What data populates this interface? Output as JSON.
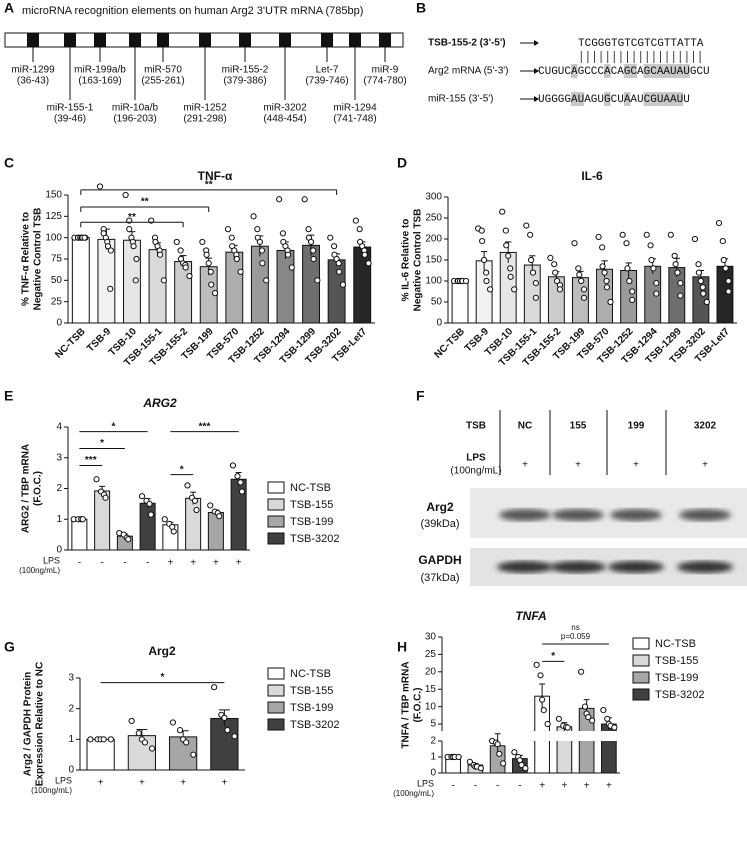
{
  "panel_a": {
    "label": "A",
    "title": "microRNA recognition elements on human Arg2 3'UTR mRNA (785bp)",
    "sites": [
      {
        "name": "miR-1299",
        "range": "(36-43)"
      },
      {
        "name": "miR-155-1",
        "range": "(39-46)"
      },
      {
        "name": "miR-199a/b",
        "range": "(163-169)"
      },
      {
        "name": "miR-10a/b",
        "range": "(196-203)"
      },
      {
        "name": "miR-570",
        "range": "(255-261)"
      },
      {
        "name": "miR-1252",
        "range": "(291-298)"
      },
      {
        "name": "miR-155-2",
        "range": "(379-386)"
      },
      {
        "name": "miR-3202",
        "range": "(448-454)"
      },
      {
        "name": "Let-7",
        "range": "(739-746)"
      },
      {
        "name": "miR-1294",
        "range": "(741-748)"
      },
      {
        "name": "miR-9",
        "range": "(774-780)"
      }
    ]
  },
  "panel_b": {
    "label": "B",
    "rows": [
      {
        "name": "TSB-155-2 (3'-5')",
        "sequence": "TCGGGTGTCGTCGTTATTA"
      },
      {
        "name": "Arg2 mRNA (5'-3')",
        "sequence": "CUGUCAGCCCACAGCAGCAAUAUGCU"
      },
      {
        "name": "miR-155 (3'-5')",
        "sequence": "UGGGGAUAGUGCUAAUCGUAAUU"
      }
    ]
  },
  "panel_f": {
    "label": "F",
    "header": "TSB",
    "lanes": [
      "NC",
      "155",
      "199",
      "3202"
    ],
    "treatment": "LPS",
    "treatment_unit": "(100ng/mL)",
    "treatment_marks": [
      "+",
      "+",
      "+",
      "+"
    ],
    "blots": [
      {
        "name": "Arg2",
        "size": "(39kDa)"
      },
      {
        "name": "GAPDH",
        "size": "(37kDa)"
      }
    ]
  },
  "chart_data": [
    {
      "type": "bar",
      "panel_label": "C",
      "title": "TNF-α",
      "y_label": [
        "% TNF-α Relative to",
        "Negative Control TSB"
      ],
      "categories": [
        "NC-TSB",
        "TSB-9",
        "TSB-10",
        "TSB-155-1",
        "TSB-155-2",
        "TSB-199",
        "TSB-570",
        "TSB-1252",
        "TSB-1294",
        "TSB-1299",
        "TSB-3202",
        "TSB-Let7"
      ],
      "values": [
        100,
        98,
        97,
        86,
        72,
        66,
        83,
        90,
        85,
        91,
        74,
        89
      ],
      "errors": [
        0,
        12,
        10,
        8,
        7,
        10,
        8,
        12,
        10,
        12,
        7,
        6
      ],
      "points": [
        [
          100,
          100,
          100,
          100,
          100,
          100,
          100,
          100
        ],
        [
          160,
          110,
          105,
          100,
          95,
          90,
          85,
          40
        ],
        [
          150,
          120,
          110,
          100,
          95,
          90,
          75,
          50
        ],
        [
          120,
          100,
          95,
          90,
          85,
          80,
          50
        ],
        [
          95,
          85,
          75,
          70,
          68,
          65,
          55
        ],
        [
          95,
          85,
          80,
          70,
          60,
          45,
          35
        ],
        [
          110,
          100,
          90,
          85,
          80,
          75,
          60
        ],
        [
          125,
          110,
          100,
          95,
          85,
          70,
          50
        ],
        [
          145,
          105,
          95,
          90,
          85,
          80,
          65
        ],
        [
          145,
          110,
          100,
          95,
          85,
          75,
          50
        ],
        [
          100,
          90,
          80,
          75,
          70,
          60,
          45
        ],
        [
          120,
          110,
          95,
          90,
          85,
          80,
          70
        ]
      ],
      "colors": [
        "#ffffff",
        "#f2f2f2",
        "#e6e6e6",
        "#dadada",
        "#cccccc",
        "#bdbdbd",
        "#adadad",
        "#9a9a9a",
        "#878787",
        "#6e6e6e",
        "#555555",
        "#262626"
      ],
      "ylim": [
        0,
        150
      ],
      "yticks": [
        0,
        25,
        50,
        75,
        100,
        125,
        150
      ],
      "annotations": [
        {
          "label": "**"
        },
        {
          "label": "**"
        },
        {
          "label": "**"
        }
      ]
    },
    {
      "type": "bar",
      "panel_label": "D",
      "title": "IL-6",
      "y_label": [
        "% IL-6 Relative to",
        "Negative Control TSB"
      ],
      "categories": [
        "NC-TSB",
        "TSB-9",
        "TSB-10",
        "TSB-155-1",
        "TSB-155-2",
        "TSB-199",
        "TSB-570",
        "TSB-1252",
        "TSB-1294",
        "TSB-1299",
        "TSB-3202",
        "TSB-Let7"
      ],
      "values": [
        100,
        148,
        168,
        138,
        110,
        108,
        128,
        125,
        135,
        132,
        110,
        135
      ],
      "errors": [
        0,
        22,
        25,
        22,
        12,
        15,
        20,
        18,
        18,
        22,
        15,
        18
      ],
      "points": [
        [
          100,
          100,
          100,
          100,
          100,
          100,
          100
        ],
        [
          225,
          220,
          195,
          150,
          120,
          100,
          80
        ],
        [
          265,
          220,
          185,
          160,
          130,
          110,
          80
        ],
        [
          232,
          210,
          150,
          120,
          95,
          60
        ],
        [
          155,
          140,
          120,
          100,
          90,
          80
        ],
        [
          190,
          130,
          115,
          100,
          80,
          60
        ],
        [
          205,
          180,
          135,
          120,
          100,
          85,
          50
        ],
        [
          210,
          190,
          130,
          100,
          75,
          55
        ],
        [
          210,
          185,
          150,
          130,
          95,
          70
        ],
        [
          210,
          160,
          140,
          120,
          95,
          65
        ],
        [
          200,
          140,
          120,
          100,
          85,
          70,
          50
        ],
        [
          238,
          195,
          150,
          130,
          100,
          75
        ]
      ],
      "colors": [
        "#ffffff",
        "#f2f2f2",
        "#e6e6e6",
        "#dadada",
        "#cccccc",
        "#bdbdbd",
        "#adadad",
        "#9a9a9a",
        "#878787",
        "#6e6e6e",
        "#555555",
        "#262626"
      ],
      "ylim": [
        0,
        300
      ],
      "yticks": [
        0,
        50,
        100,
        150,
        200,
        250,
        300
      ],
      "annotations": []
    },
    {
      "type": "bar",
      "panel_label": "E",
      "title": "ARG2",
      "y_label": [
        "ARG2 / TBP mRNA",
        "(F.O.C.)"
      ],
      "x_label": "LPS",
      "x_label_unit": "(100ng/mL)",
      "categories": [
        "-",
        "-",
        "-",
        "-",
        "+",
        "+",
        "+",
        "+"
      ],
      "values": [
        1.0,
        1.92,
        0.45,
        1.52,
        0.82,
        1.68,
        1.22,
        2.3
      ],
      "errors": [
        0,
        0.15,
        0.07,
        0.15,
        0.08,
        0.2,
        0.08,
        0.22
      ],
      "points": [
        [
          1,
          1,
          1,
          1
        ],
        [
          2.3,
          1.9,
          1.8,
          1.7
        ],
        [
          0.55,
          0.5,
          0.4,
          0.35
        ],
        [
          1.75,
          1.6,
          1.5,
          1.15
        ],
        [
          1.0,
          0.85,
          0.75,
          0.6
        ],
        [
          2.1,
          1.7,
          1.6,
          1.3
        ],
        [
          1.45,
          1.25,
          1.2,
          1.1
        ],
        [
          2.75,
          2.4,
          2.2,
          1.9
        ]
      ],
      "colors": [
        "#ffffff",
        "#d9d9d9",
        "#a6a6a6",
        "#404040",
        "#ffffff",
        "#d9d9d9",
        "#a6a6a6",
        "#404040"
      ],
      "legend": [
        {
          "name": "NC-TSB",
          "color": "#ffffff"
        },
        {
          "name": "TSB-155",
          "color": "#d9d9d9"
        },
        {
          "name": "TSB-199",
          "color": "#a6a6a6"
        },
        {
          "name": "TSB-3202",
          "color": "#404040"
        }
      ],
      "ylim": [
        0,
        4
      ],
      "yticks": [
        0,
        1,
        2,
        3,
        4
      ],
      "annotations": [
        {
          "label": "***"
        },
        {
          "label": "*"
        },
        {
          "label": "*"
        },
        {
          "label": "*"
        },
        {
          "label": "***"
        }
      ]
    },
    {
      "type": "bar",
      "panel_label": "G",
      "title": "Arg2",
      "y_label": [
        "Arg2 / GAPDH Protein",
        "Expression Relative to NC"
      ],
      "x_label": "LPS",
      "x_label_unit": "(100ng/mL)",
      "categories": [
        "+",
        "+",
        "+",
        "+"
      ],
      "values": [
        1.0,
        1.12,
        1.08,
        1.68
      ],
      "errors": [
        0,
        0.2,
        0.2,
        0.28
      ],
      "points": [
        [
          1,
          1,
          1,
          1,
          1
        ],
        [
          1.6,
          1.2,
          1.0,
          0.9,
          0.7
        ],
        [
          1.55,
          1.3,
          1.0,
          0.9,
          0.5
        ],
        [
          2.7,
          1.8,
          1.7,
          1.3,
          1.1
        ]
      ],
      "colors": [
        "#ffffff",
        "#d9d9d9",
        "#a6a6a6",
        "#404040"
      ],
      "legend": [
        {
          "name": "NC-TSB",
          "color": "#ffffff"
        },
        {
          "name": "TSB-155",
          "color": "#d9d9d9"
        },
        {
          "name": "TSB-199",
          "color": "#a6a6a6"
        },
        {
          "name": "TSB-3202",
          "color": "#404040"
        }
      ],
      "ylim": [
        0,
        3
      ],
      "yticks": [
        0,
        1,
        2,
        3
      ],
      "annotations": [
        {
          "label": "*"
        }
      ]
    },
    {
      "type": "bar",
      "panel_label": "H",
      "title": "TNFA",
      "y_label": [
        "TNFA / TBP mRNA",
        "(F.O.C.)"
      ],
      "x_label": "LPS",
      "x_label_unit": "(100ng/mL)",
      "categories": [
        "-",
        "-",
        "-",
        "-",
        "+",
        "+",
        "+",
        "+"
      ],
      "values": [
        1.0,
        0.5,
        1.7,
        0.9,
        13,
        4.2,
        9.5,
        5.0
      ],
      "errors": [
        0,
        0.1,
        0.5,
        0.2,
        3.5,
        1.2,
        2.5,
        1.8
      ],
      "points": [
        [
          1,
          1,
          1,
          1,
          1
        ],
        [
          0.7,
          0.5,
          0.4,
          0.4,
          0.3
        ],
        [
          2.0,
          1.9,
          1.8,
          1.2,
          0.6
        ],
        [
          1.3,
          1.0,
          0.8,
          0.5,
          0.3
        ],
        [
          22,
          19,
          12,
          9,
          5
        ],
        [
          6.5,
          4.5,
          4.2,
          4
        ],
        [
          20,
          10,
          8,
          7,
          6
        ],
        [
          9,
          6.5,
          5,
          4.5,
          4
        ]
      ],
      "colors": [
        "#ffffff",
        "#d9d9d9",
        "#a6a6a6",
        "#404040",
        "#ffffff",
        "#d9d9d9",
        "#a6a6a6",
        "#404040"
      ],
      "legend": [
        {
          "name": "NC-TSB",
          "color": "#ffffff"
        },
        {
          "name": "TSB-155",
          "color": "#d9d9d9"
        },
        {
          "name": "TSB-199",
          "color": "#a6a6a6"
        },
        {
          "name": "TSB-3202",
          "color": "#404040"
        }
      ],
      "ylim": [
        0,
        30
      ],
      "ybreak": [
        2,
        3
      ],
      "yticks": [
        0,
        1,
        2,
        5,
        10,
        15,
        20,
        25,
        30
      ],
      "annotations": [
        {
          "label": "*"
        },
        {
          "label": "ns",
          "note": "p=0.059"
        }
      ]
    }
  ]
}
